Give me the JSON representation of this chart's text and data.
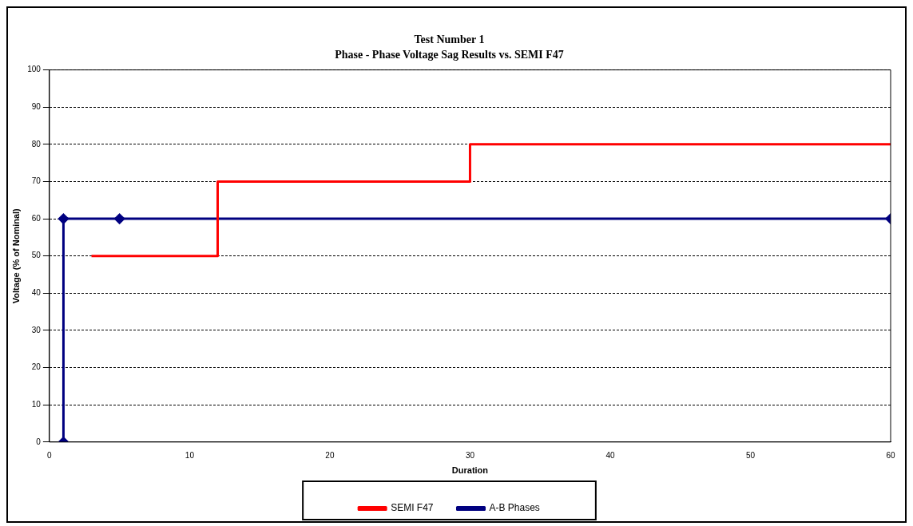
{
  "chart_data": {
    "type": "line",
    "title": "Test Number 1",
    "subtitle": "Phase - Phase Voltage Sag Results vs. SEMI F47",
    "xlabel": "Duration",
    "ylabel": "Voltage (% of Nominal)",
    "xlim": [
      0,
      60
    ],
    "xticks": [
      0,
      10,
      20,
      30,
      40,
      50,
      60
    ],
    "ylim": [
      0,
      100
    ],
    "yticks": [
      0,
      10,
      20,
      30,
      40,
      50,
      60,
      70,
      80,
      90,
      100
    ],
    "grid": "y",
    "legend": "bottom",
    "series": [
      {
        "name": "SEMI F47",
        "type": "step",
        "color": "#ff0000",
        "marker": "none",
        "x": [
          3,
          12,
          30,
          60
        ],
        "values": [
          50,
          70,
          80,
          80
        ]
      },
      {
        "name": "A-B Phases",
        "type": "line",
        "color": "#000080",
        "marker": "diamond",
        "x": [
          1,
          1,
          5,
          60
        ],
        "values": [
          0,
          60,
          60,
          60
        ]
      }
    ]
  }
}
